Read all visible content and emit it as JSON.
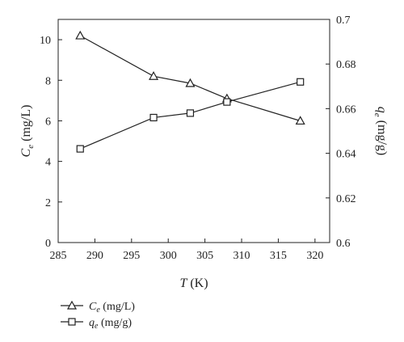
{
  "chart_data": {
    "type": "line",
    "x": [
      288,
      298,
      303,
      308,
      318
    ],
    "xlabel": {
      "var": "T",
      "unit": " (K)"
    },
    "ylabel_left": {
      "var": "C",
      "sub": "e",
      "unit": " (mg/L)"
    },
    "ylabel_right": {
      "var": "q",
      "sub": "e",
      "unit": " (mg/g)"
    },
    "xlim": [
      285,
      322
    ],
    "ylim_left": [
      0,
      11
    ],
    "ylim_right": [
      0.6,
      0.7
    ],
    "xticks": [
      285,
      290,
      295,
      300,
      305,
      310,
      315,
      320
    ],
    "xtick_labels": [
      "285",
      "290",
      "295",
      "300",
      "305",
      "310",
      "315",
      "320"
    ],
    "yticks_left": [
      0,
      2,
      4,
      6,
      8,
      10
    ],
    "ytick_labels_left": [
      "0",
      "2",
      "4",
      "6",
      "8",
      "10"
    ],
    "yticks_right": [
      0.6,
      0.62,
      0.64,
      0.66,
      0.68,
      0.7
    ],
    "ytick_labels_right": [
      "0.6",
      "0.62",
      "0.64",
      "0.66",
      "0.68",
      "0.7"
    ],
    "grid": false,
    "legend_position": "bottom-left",
    "series": [
      {
        "name": {
          "var": "C",
          "sub": "e",
          "unit": " (mg/L)"
        },
        "axis": "left",
        "marker": "triangle",
        "values": [
          10.2,
          8.2,
          7.85,
          7.1,
          6.0
        ]
      },
      {
        "name": {
          "var": "q",
          "sub": "e",
          "unit": " (mg/g)"
        },
        "axis": "right",
        "marker": "square",
        "values": [
          0.642,
          0.656,
          0.658,
          0.663,
          0.672
        ]
      }
    ]
  }
}
